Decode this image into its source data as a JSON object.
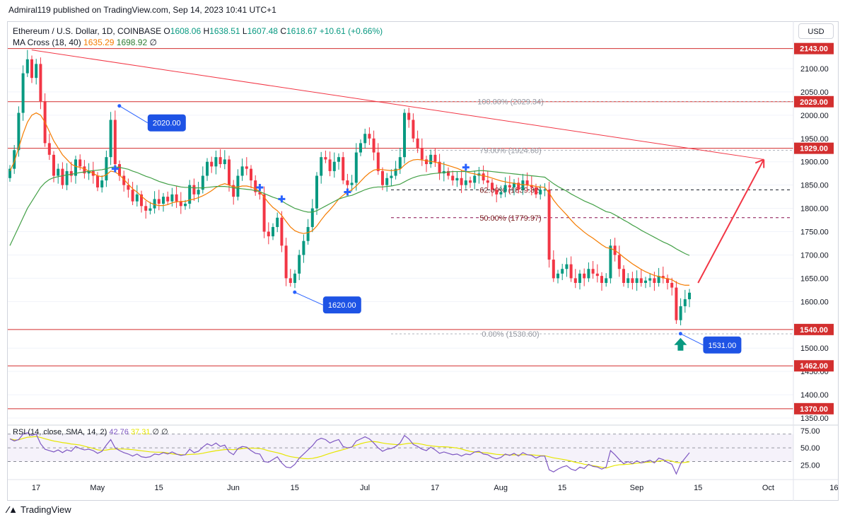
{
  "header": {
    "publish_line": "Admiral119 published on TradingView.com, Sep 14, 2023 10:41 UTC+1"
  },
  "legend": {
    "symbol": "Ethereum / U.S. Dollar, 1D, COINBASE",
    "o_key": "O",
    "o_val": "1608.06",
    "h_key": "H",
    "h_val": "1638.51",
    "l_key": "L",
    "l_val": "1607.48",
    "c_key": "C",
    "c_val": "1618.67",
    "change": "+10.61 (+0.66%)",
    "ma_label": "MA Cross (18, 40)",
    "ma_fast": "1635.29",
    "ma_slow": "1698.92",
    "ma_extra": "∅"
  },
  "rsi_legend": {
    "label": "RSI (14, close, SMA, 14, 2)",
    "value": "42.76",
    "sma": "37.31",
    "extra": "∅ ∅"
  },
  "currency_button": "USD",
  "footer": {
    "brand": "TradingView"
  },
  "colors": {
    "up": "#089981",
    "down": "#f23645",
    "ma_fast": "#f57c00",
    "ma_slow": "#43a047",
    "level": "#d32f2f",
    "rsi": "#7e57c2",
    "rsi_sma": "#e6e600",
    "label_blue": "#1e53e5"
  },
  "chart_data": {
    "type": "candlestick",
    "x_ticks": [
      "17",
      "May",
      "15",
      "Jun",
      "15",
      "Jul",
      "17",
      "Aug",
      "15",
      "Sep",
      "15",
      "Oct",
      "16"
    ],
    "y_ticks": [
      "2100.00",
      "2050.00",
      "2000.00",
      "1950.00",
      "1900.00",
      "1850.00",
      "1800.00",
      "1750.00",
      "1700.00",
      "1650.00",
      "1600.00",
      "1500.00",
      "1450.00",
      "1400.00",
      "1350.00"
    ],
    "ylim": [
      1345,
      2150
    ],
    "levels": [
      "2143.00",
      "2029.00",
      "1929.00",
      "1540.00",
      "1462.00",
      "1370.00"
    ],
    "last_price": "1540.00",
    "fib_levels": [
      {
        "label": "100.00% (2029.34)",
        "price": 2029.34
      },
      {
        "label": "79.00% (1924.60)",
        "price": 1924.6
      },
      {
        "label": "62.00% (1839.82)",
        "price": 1839.82
      },
      {
        "label": "50.00% (1779.97)",
        "price": 1779.97
      },
      {
        "label": "0.00% (1530.60)",
        "price": 1530.6
      }
    ],
    "callouts": [
      "2020.00",
      "1620.00",
      "1531.00"
    ],
    "callout_points": [
      {
        "date": "2023-05-06",
        "price": 2020
      },
      {
        "date": "2023-06-15",
        "price": 1620
      },
      {
        "date": "2023-09-11",
        "price": 1531
      }
    ],
    "trendline": [
      {
        "date": "2023-04-16",
        "price": 2140
      },
      {
        "date": "2023-09-30",
        "price": 1905
      }
    ],
    "projection": [
      {
        "date": "2023-09-15",
        "price": 1640
      },
      {
        "date": "2023-09-30",
        "price": 1905
      }
    ],
    "candles_close": [
      1885,
      1925,
      2005,
      2090,
      2120,
      2080,
      2110,
      2030,
      1940,
      1915,
      1870,
      1885,
      1850,
      1880,
      1870,
      1905,
      1890,
      1875,
      1880,
      1870,
      1845,
      1860,
      1910,
      1990,
      1895,
      1870,
      1850,
      1840,
      1815,
      1830,
      1805,
      1795,
      1800,
      1820,
      1810,
      1825,
      1815,
      1830,
      1815,
      1805,
      1810,
      1850,
      1830,
      1840,
      1870,
      1900,
      1890,
      1910,
      1895,
      1905,
      1850,
      1825,
      1870,
      1890,
      1885,
      1860,
      1835,
      1830,
      1750,
      1740,
      1760,
      1780,
      1720,
      1650,
      1640,
      1660,
      1700,
      1730,
      1760,
      1800,
      1870,
      1910,
      1905,
      1880,
      1900,
      1910,
      1860,
      1850,
      1855,
      1920,
      1940,
      1960,
      1950,
      1920,
      1880,
      1850,
      1865,
      1870,
      1885,
      1910,
      2005,
      1990,
      1950,
      1930,
      1905,
      1895,
      1915,
      1900,
      1875,
      1880,
      1870,
      1860,
      1865,
      1850,
      1860,
      1855,
      1870,
      1875,
      1860,
      1855,
      1840,
      1830,
      1835,
      1850,
      1845,
      1855,
      1840,
      1860,
      1850,
      1845,
      1830,
      1840,
      1840,
      1690,
      1650,
      1660,
      1670,
      1680,
      1650,
      1640,
      1660,
      1650,
      1670,
      1660,
      1655,
      1640,
      1650,
      1720,
      1700,
      1670,
      1640,
      1650,
      1640,
      1650,
      1640,
      1645,
      1650,
      1640,
      1655,
      1650,
      1640,
      1630,
      1560,
      1590,
      1605,
      1619
    ],
    "ma_fast": [
      1880,
      1900,
      1930,
      1960,
      1985,
      2000,
      2005,
      2000,
      1985,
      1965,
      1945,
      1930,
      1915,
      1905,
      1895,
      1890,
      1888,
      1885,
      1880,
      1875,
      1870,
      1868,
      1872,
      1880,
      1878,
      1872,
      1862,
      1852,
      1842,
      1835,
      1826,
      1818,
      1812,
      1808,
      1806,
      1806,
      1808,
      1812,
      1814,
      1815,
      1815,
      1818,
      1820,
      1823,
      1827,
      1832,
      1838,
      1845,
      1850,
      1853,
      1850,
      1846,
      1846,
      1848,
      1848,
      1846,
      1842,
      1836,
      1824,
      1812,
      1802,
      1795,
      1785,
      1772,
      1760,
      1752,
      1748,
      1746,
      1748,
      1752,
      1762,
      1775,
      1787,
      1797,
      1808,
      1820,
      1828,
      1835,
      1840,
      1848,
      1858,
      1868,
      1876,
      1882,
      1884,
      1883,
      1882,
      1881,
      1882,
      1884,
      1893,
      1900,
      1904,
      1905,
      1904,
      1902,
      1901,
      1899,
      1897,
      1895,
      1892,
      1889,
      1886,
      1882,
      1879,
      1876,
      1874,
      1872,
      1870,
      1868,
      1865,
      1862,
      1859,
      1857,
      1855,
      1854,
      1852,
      1851,
      1850,
      1849,
      1847,
      1846,
      1845,
      1833,
      1818,
      1806,
      1796,
      1786,
      1775,
      1765,
      1757,
      1749,
      1742,
      1736,
      1729,
      1722,
      1716,
      1714,
      1710,
      1703,
      1695,
      1688,
      1681,
      1675,
      1669,
      1664,
      1660,
      1656,
      1654,
      1651,
      1649,
      1647,
      1641,
      1637,
      1635,
      1635
    ],
    "ma_slow": [
      1720,
      1740,
      1760,
      1780,
      1800,
      1815,
      1830,
      1845,
      1855,
      1862,
      1866,
      1868,
      1870,
      1872,
      1873,
      1875,
      1877,
      1878,
      1880,
      1881,
      1882,
      1883,
      1885,
      1888,
      1889,
      1888,
      1886,
      1884,
      1880,
      1877,
      1873,
      1869,
      1866,
      1862,
      1858,
      1855,
      1852,
      1850,
      1848,
      1846,
      1845,
      1845,
      1844,
      1844,
      1844,
      1845,
      1846,
      1847,
      1847,
      1847,
      1846,
      1844,
      1843,
      1842,
      1841,
      1840,
      1838,
      1836,
      1832,
      1828,
      1824,
      1821,
      1816,
      1810,
      1805,
      1800,
      1797,
      1794,
      1792,
      1792,
      1795,
      1800,
      1805,
      1810,
      1815,
      1820,
      1823,
      1826,
      1828,
      1832,
      1836,
      1840,
      1843,
      1845,
      1846,
      1846,
      1847,
      1848,
      1850,
      1852,
      1857,
      1862,
      1866,
      1869,
      1871,
      1872,
      1874,
      1875,
      1876,
      1877,
      1878,
      1879,
      1879,
      1879,
      1879,
      1879,
      1880,
      1881,
      1881,
      1880,
      1879,
      1878,
      1877,
      1876,
      1875,
      1874,
      1873,
      1872,
      1871,
      1870,
      1869,
      1868,
      1867,
      1860,
      1853,
      1847,
      1842,
      1837,
      1831,
      1826,
      1821,
      1816,
      1812,
      1808,
      1803,
      1798,
      1793,
      1791,
      1786,
      1781,
      1775,
      1770,
      1764,
      1759,
      1753,
      1748,
      1743,
      1738,
      1733,
      1728,
      1724,
      1719,
      1713,
      1708,
      1703,
      1699
    ],
    "rsi": [
      63,
      60,
      62,
      70,
      72,
      68,
      70,
      56,
      48,
      46,
      44,
      47,
      43,
      47,
      45,
      52,
      49,
      47,
      48,
      46,
      42,
      45,
      54,
      62,
      50,
      46,
      43,
      41,
      38,
      41,
      37,
      36,
      37,
      41,
      40,
      43,
      41,
      44,
      41,
      39,
      40,
      48,
      43,
      45,
      51,
      56,
      53,
      57,
      52,
      54,
      44,
      40,
      49,
      52,
      51,
      46,
      42,
      41,
      30,
      29,
      33,
      37,
      28,
      22,
      21,
      26,
      35,
      41,
      47,
      53,
      61,
      64,
      62,
      57,
      60,
      62,
      52,
      50,
      51,
      60,
      63,
      66,
      63,
      57,
      50,
      45,
      48,
      49,
      52,
      57,
      68,
      63,
      55,
      52,
      48,
      46,
      51,
      47,
      42,
      44,
      42,
      40,
      41,
      38,
      41,
      40,
      44,
      45,
      41,
      40,
      36,
      34,
      36,
      41,
      39,
      42,
      38,
      43,
      40,
      39,
      35,
      38,
      38,
      18,
      15,
      19,
      22,
      24,
      19,
      17,
      22,
      20,
      26,
      23,
      22,
      19,
      22,
      46,
      40,
      33,
      27,
      30,
      27,
      31,
      28,
      30,
      32,
      28,
      35,
      33,
      29,
      26,
      12,
      27,
      35,
      43
    ],
    "rsi_levels": [
      "75.00",
      "50.00",
      "25.00"
    ]
  }
}
